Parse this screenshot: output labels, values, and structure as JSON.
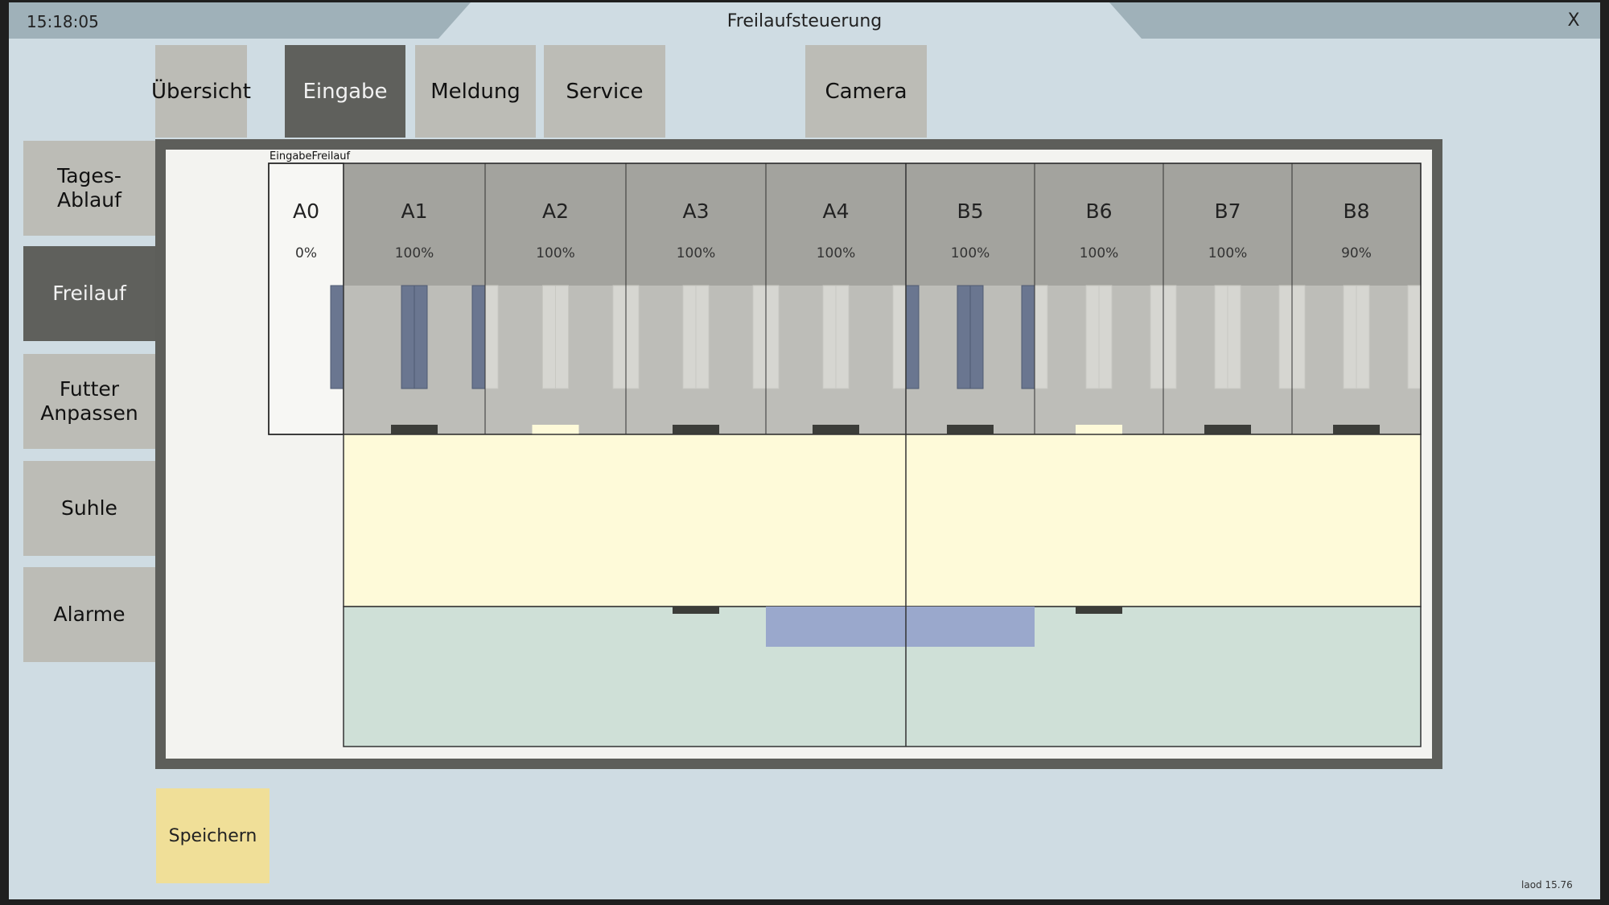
{
  "window": {
    "clock": "15:18:05",
    "title": "Freilaufsteuerung",
    "close": "X",
    "version": "laod 15.76"
  },
  "tabs": [
    {
      "label": "Übersicht",
      "active": false
    },
    {
      "label": "Eingabe",
      "active": true
    },
    {
      "label": "Meldung",
      "active": false
    },
    {
      "label": "Service",
      "active": false
    },
    {
      "label": "Camera",
      "active": false
    }
  ],
  "sidebar": [
    {
      "label": "Tages-\nAblauf",
      "active": false
    },
    {
      "label": "Freilauf",
      "active": true
    },
    {
      "label": "Futter\nAnpassen",
      "active": false
    },
    {
      "label": "Suhle",
      "active": false
    },
    {
      "label": "Alarme",
      "active": false
    }
  ],
  "panel": {
    "label": "EingabeFreilauf"
  },
  "pens": [
    {
      "name": "A0",
      "percent": "0%",
      "selected": false
    },
    {
      "name": "A1",
      "percent": "100%",
      "selected": true
    },
    {
      "name": "A2",
      "percent": "100%",
      "selected": false
    },
    {
      "name": "A3",
      "percent": "100%",
      "selected": false
    },
    {
      "name": "A4",
      "percent": "100%",
      "selected": false
    },
    {
      "name": "B5",
      "percent": "100%",
      "selected": true
    },
    {
      "name": "B6",
      "percent": "100%",
      "selected": false
    },
    {
      "name": "B7",
      "percent": "100%",
      "selected": false
    },
    {
      "name": "B8",
      "percent": "90%",
      "selected": false
    }
  ],
  "door_markers": {
    "pens_bottom": [
      "dark",
      "light",
      "dark",
      "dark",
      "dark",
      "light",
      "dark",
      "dark"
    ],
    "field_bottom": [
      "dark",
      "dark"
    ]
  },
  "colors": {
    "header_gray": "#a3a39e",
    "gate_gray": "#bdbdb8",
    "gate_blue": "#6a7690",
    "field_yellow": "#fefad9",
    "field_green": "#cfe0d7",
    "passage_blue": "#9aa8cc",
    "save_yellow": "#f0df98"
  },
  "actions": {
    "save": "Speichern"
  }
}
